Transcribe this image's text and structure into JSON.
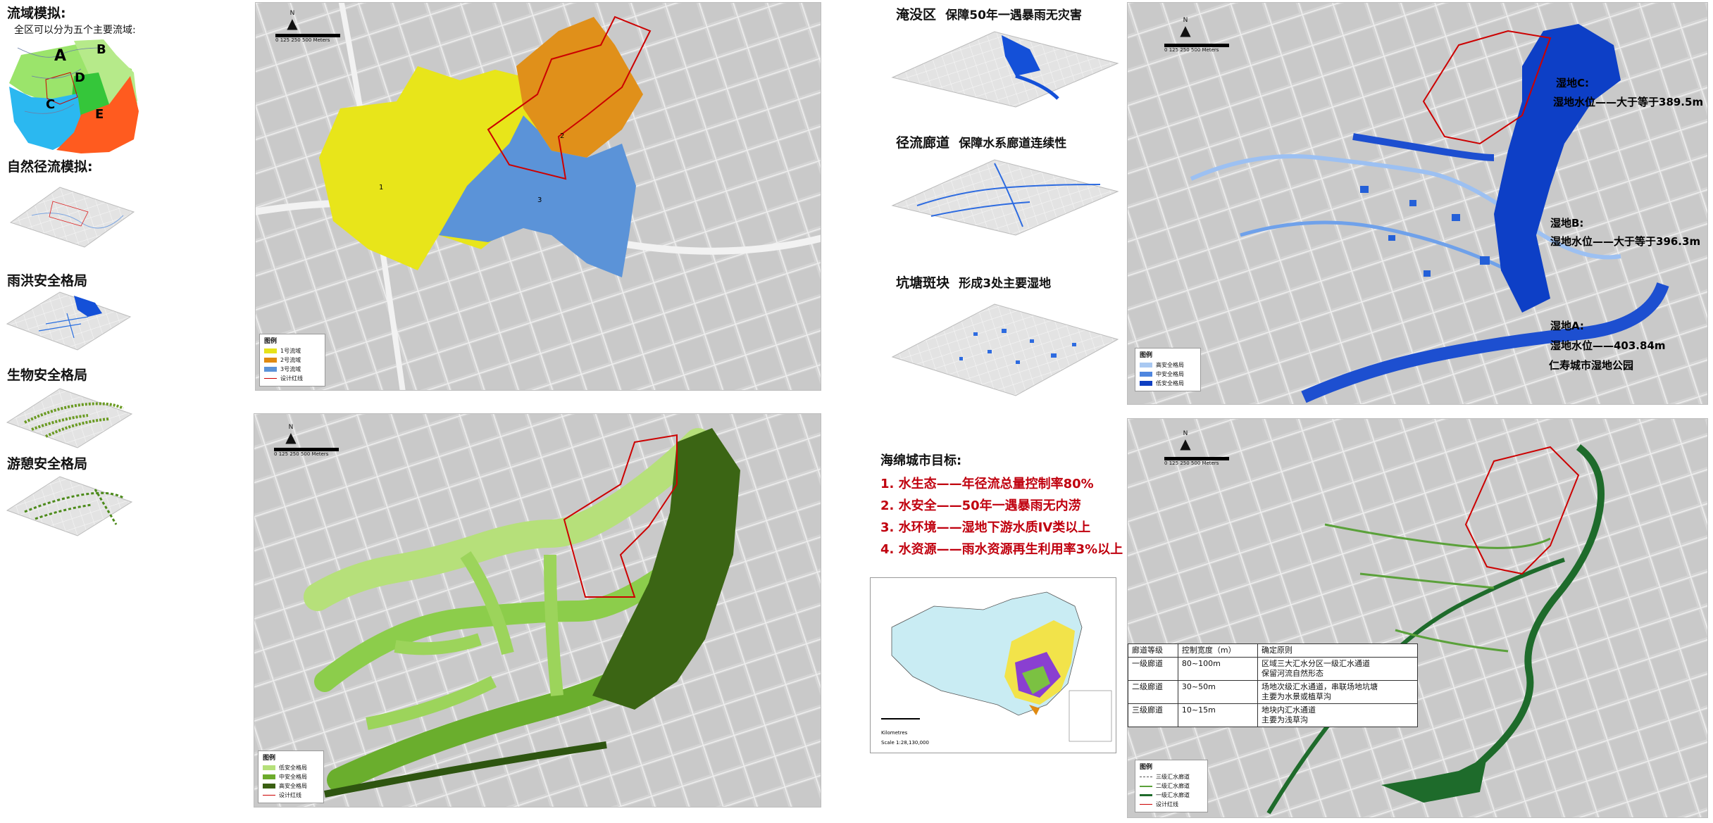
{
  "left": {
    "title": "流域模拟:",
    "subtitle": "全区可以分为五个主要流域:",
    "zones": [
      "A",
      "B",
      "C",
      "D",
      "E"
    ],
    "runoff_title": "自然径流模拟:",
    "flood_title": "雨洪安全格局",
    "bio_title": "生物安全格局",
    "recre_title": "游憩安全格局"
  },
  "map1": {
    "north": "N",
    "scale_ticks": [
      "0",
      "125",
      "250",
      "500"
    ],
    "scale_unit": "Meters",
    "zone_labels": [
      "1",
      "2",
      "3"
    ],
    "legend_title": "图例",
    "legend": [
      {
        "label": "1号流域",
        "color": "#e6e21a"
      },
      {
        "label": "2号流域",
        "color": "#e08a12"
      },
      {
        "label": "3号流域",
        "color": "#5b93d8"
      },
      {
        "label": "设计红线",
        "color": "#cc0000"
      }
    ]
  },
  "map2": {
    "north": "N",
    "scale_ticks": [
      "0",
      "125",
      "250",
      "500"
    ],
    "scale_unit": "Meters",
    "legend_title": "图例",
    "legend": [
      {
        "label": "低安全格局",
        "color": "#b5e07a"
      },
      {
        "label": "中安全格局",
        "color": "#6cab2c"
      },
      {
        "label": "高安全格局",
        "color": "#3a5f12"
      },
      {
        "label": "设计红线",
        "color": "#cc0000"
      }
    ]
  },
  "middle": {
    "items": [
      {
        "head": "淹没区",
        "text": "保障50年一遇暴雨无灾害"
      },
      {
        "head": "径流廊道",
        "text": "保障水系廊道连续性"
      },
      {
        "head": "坑塘斑块",
        "text": "形成3处主要湿地"
      }
    ],
    "goals_title": "海绵城市目标:",
    "goals": [
      "1. 水生态——年径流总量控制率80%",
      "2. 水安全——50年一遇暴雨无内涝",
      "3. 水环境——湿地下游水质IV类以上",
      "4. 水资源——雨水资源再生利用率3%以上"
    ],
    "cn_scale": "Scale 1:28,130,000",
    "cn_unit": "Kilometres"
  },
  "map3": {
    "north": "N",
    "scale_ticks": [
      "0",
      "125",
      "250",
      "500"
    ],
    "scale_unit": "Meters",
    "wetlands": [
      {
        "label": "湿地C:",
        "level": "湿地水位——大于等于389.5m"
      },
      {
        "label": "湿地B:",
        "level": "湿地水位——大于等于396.3m"
      },
      {
        "label": "湿地A:",
        "level": "湿地水位——403.84m"
      }
    ],
    "park": "仁寿城市湿地公园",
    "legend_title": "图例",
    "legend": [
      {
        "label": "高安全格局",
        "color": "#a9c9f2"
      },
      {
        "label": "中安全格局",
        "color": "#4f86df"
      },
      {
        "label": "低安全格局",
        "color": "#0f3fc2"
      }
    ]
  },
  "map4": {
    "north": "N",
    "scale_ticks": [
      "0",
      "125",
      "250",
      "500"
    ],
    "scale_unit": "Meters",
    "table": {
      "headers": [
        "廊道等级",
        "控制宽度（m）",
        "确定原则"
      ],
      "rows": [
        [
          "一级廊道",
          "80~100m",
          "区域三大汇水分区一级汇水通道\n保留河流自然形态"
        ],
        [
          "二级廊道",
          "30~50m",
          "场地次级汇水通道，串联场地坑塘\n主要为水景或植草沟"
        ],
        [
          "三级廊道",
          "10~15m",
          "地块内汇水通道\n主要为浅草沟"
        ]
      ]
    },
    "legend_title": "图例",
    "legend": [
      {
        "label": "三级汇水廊道",
        "color": "#555555"
      },
      {
        "label": "二级汇水廊道",
        "color": "#5aa13a"
      },
      {
        "label": "一级汇水廊道",
        "color": "#1e6b2b"
      },
      {
        "label": "设计红线",
        "color": "#cc0000"
      }
    ]
  }
}
